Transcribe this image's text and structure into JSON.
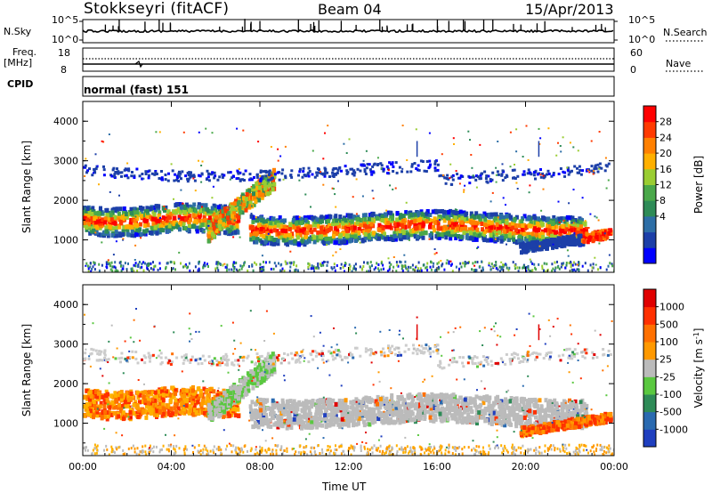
{
  "header": {
    "station": "Stokkseyri (fitACF)",
    "beam": "Beam 04",
    "date": "15/Apr/2013"
  },
  "strip_labels": {
    "nsky": "N.Sky",
    "nsky_tick_top": "10^5",
    "nsky_tick_bottom": "10^0",
    "nsearch": "N.Search",
    "nsearch_tick_top": "10^5",
    "nsearch_tick_bottom": "10^0",
    "freq": "Freq.",
    "freq_unit": "[MHz]",
    "freq_tick_top": "18",
    "freq_tick_bottom": "8",
    "nave": "Nave",
    "nave_tick_top": "60",
    "nave_tick_bottom": "0",
    "cpid": "CPID",
    "mode": "normal (fast) 151"
  },
  "chart_data": [
    {
      "type": "heatmap",
      "name": "power",
      "ylabel": "Slant Range [km]",
      "xlabel": "Time UT",
      "ylim": [
        180,
        4500
      ],
      "yticks": [
        1000,
        2000,
        3000,
        4000
      ],
      "xticks": [
        "00:00",
        "04:00",
        "08:00",
        "12:00",
        "16:00",
        "20:00",
        "00:00"
      ],
      "colorbar": {
        "label": "Power [dB]",
        "ticks": [
          "28",
          "24",
          "20",
          "16",
          "12",
          "8",
          "4"
        ],
        "colors": [
          "#0000ff",
          "#1c3fa8",
          "#2d6ea6",
          "#2e8b57",
          "#4aa84a",
          "#9acd32",
          "#ffb000",
          "#ff8000",
          "#ff3a00",
          "#ff0000"
        ]
      }
    },
    {
      "type": "heatmap",
      "name": "velocity",
      "ylabel": "Slant Range [km]",
      "xlabel": "Time UT",
      "ylim": [
        180,
        4500
      ],
      "yticks": [
        1000,
        2000,
        3000,
        4000
      ],
      "xticks": [
        "00:00",
        "04:00",
        "08:00",
        "12:00",
        "16:00",
        "20:00",
        "00:00"
      ],
      "colorbar": {
        "label": "Velocity [m s^-1]",
        "ticks": [
          "1000",
          "500",
          "100",
          "25",
          "-25",
          "-100",
          "-500",
          "-1000"
        ],
        "colors": [
          "#1f3fbf",
          "#2a6ab0",
          "#2e8b57",
          "#5ac840",
          "#bbbbbb",
          "#ff9900",
          "#ff7000",
          "#ff3000",
          "#e00000"
        ]
      }
    }
  ],
  "axes": {
    "time_label": "Time UT"
  }
}
